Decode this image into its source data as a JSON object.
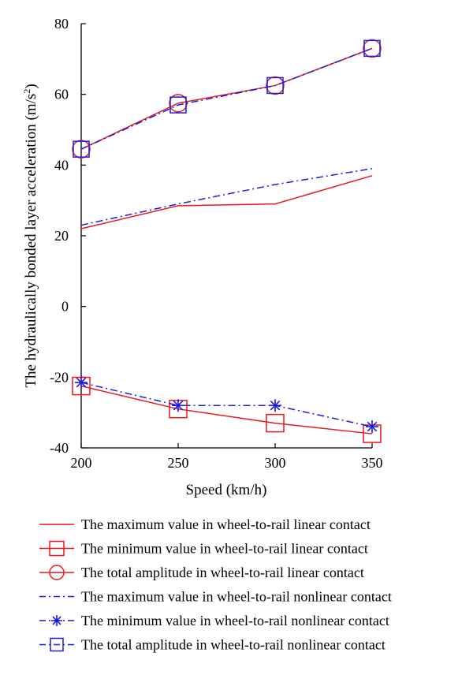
{
  "chart_data": {
    "type": "line",
    "xlabel": "Speed (km/h)",
    "ylabel_main": "The hydraulically bonded layer acceleration (m/s",
    "ylabel_sup": "2",
    "ylabel_tail": ")",
    "x": [
      200,
      250,
      300,
      350
    ],
    "xlim": [
      200,
      350
    ],
    "ylim": [
      -40,
      80
    ],
    "xticks": [
      200,
      250,
      300,
      350
    ],
    "yticks": [
      -40,
      -20,
      0,
      20,
      40,
      60,
      80
    ],
    "grid": false,
    "legend_placement": "bottom",
    "series": [
      {
        "name": "The maximum value in wheel-to-rail linear contact",
        "values": [
          22,
          28.5,
          29,
          37
        ],
        "color": "#e8191b",
        "dash": "solid",
        "marker": "none"
      },
      {
        "name": "The minimum value in wheel-to-rail linear contact",
        "values": [
          -22.5,
          -29,
          -33,
          -36
        ],
        "color": "#e8191b",
        "dash": "solid",
        "marker": "square"
      },
      {
        "name": "The total amplitude in wheel-to-rail linear contact",
        "values": [
          44.5,
          57.5,
          62.5,
          73
        ],
        "color": "#e8191b",
        "dash": "solid",
        "marker": "circle"
      },
      {
        "name": "The maximum value in wheel-to-rail nonlinear contact",
        "values": [
          23,
          29,
          34.5,
          39
        ],
        "color": "#1c1cdb",
        "dash": "dashdot",
        "marker": "none"
      },
      {
        "name": "The minimum value in wheel-to-rail nonlinear contact",
        "values": [
          -21.5,
          -28,
          -28,
          -34
        ],
        "color": "#1c1cdb",
        "dash": "dashdot",
        "marker": "star"
      },
      {
        "name": "The total amplitude in wheel-to-rail nonlinear contact",
        "values": [
          44.5,
          57,
          62.5,
          73
        ],
        "color": "#1c1cdb",
        "dash": "dashdot",
        "marker": "square"
      }
    ]
  }
}
